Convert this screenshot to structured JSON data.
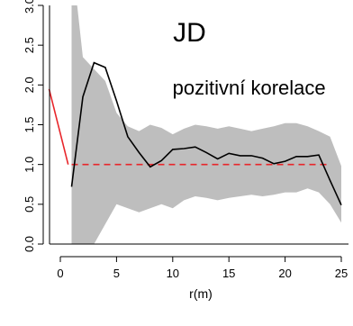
{
  "chart_data": {
    "type": "line",
    "title": "",
    "xlabel": "r(m)",
    "ylabel": "",
    "xlim": [
      -1,
      25
    ],
    "ylim": [
      0,
      3
    ],
    "x_ticks": [
      0,
      5,
      10,
      15,
      20,
      25
    ],
    "y_ticks": [
      0.0,
      0.5,
      1.0,
      1.5,
      2.0,
      2.5,
      3.0
    ],
    "x_tick_labels": [
      "0",
      "5",
      "10",
      "15",
      "20",
      "25"
    ],
    "y_tick_labels": [
      "0.0",
      "0.5",
      "1.0",
      "1.5",
      "2.0",
      "2.5",
      "3.0"
    ],
    "grid": false,
    "annotations": [
      {
        "text": "JD",
        "x": 11.5,
        "y": 2.55,
        "size": "large"
      },
      {
        "text": "pozitivní korelace",
        "x": 16.8,
        "y": 1.88,
        "size": "medium"
      }
    ],
    "colors": {
      "observed": "#000000",
      "envelope": "#bebebe",
      "expected": "#e8262b",
      "short_range": "#e8262b"
    },
    "series": [
      {
        "role": "observed",
        "style": "solid",
        "x": [
          1,
          2,
          3,
          4,
          5,
          6,
          7,
          8,
          9,
          10,
          11,
          12,
          13,
          14,
          15,
          16,
          17,
          18,
          19,
          20,
          21,
          22,
          23,
          24,
          25
        ],
        "y": [
          0.72,
          1.85,
          2.28,
          2.22,
          1.8,
          1.35,
          1.15,
          0.97,
          1.05,
          1.19,
          1.2,
          1.22,
          1.15,
          1.07,
          1.14,
          1.11,
          1.11,
          1.08,
          1.01,
          1.04,
          1.1,
          1.1,
          1.12,
          0.8,
          0.49
        ]
      },
      {
        "role": "expected",
        "style": "dashed",
        "x": [
          1,
          24
        ],
        "y": [
          1.0,
          1.0
        ]
      },
      {
        "role": "short_range",
        "style": "solid",
        "x": [
          -1,
          0.7
        ],
        "y": [
          1.95,
          1.0
        ]
      },
      {
        "role": "envelope",
        "style": "band",
        "x": [
          1,
          1.5,
          2,
          3,
          4,
          5,
          6,
          7,
          8,
          9,
          10,
          11,
          12,
          13,
          14,
          15,
          16,
          17,
          18,
          19,
          20,
          21,
          22,
          23,
          24,
          25
        ],
        "upper": [
          3.0,
          3.0,
          2.35,
          2.2,
          2.05,
          1.65,
          1.48,
          1.42,
          1.5,
          1.46,
          1.38,
          1.45,
          1.5,
          1.48,
          1.45,
          1.48,
          1.45,
          1.42,
          1.45,
          1.48,
          1.52,
          1.52,
          1.48,
          1.42,
          1.35,
          0.98
        ],
        "lower": [
          0.0,
          0.0,
          0.0,
          0.0,
          0.25,
          0.5,
          0.45,
          0.4,
          0.45,
          0.5,
          0.45,
          0.55,
          0.6,
          0.58,
          0.55,
          0.58,
          0.6,
          0.62,
          0.6,
          0.62,
          0.65,
          0.65,
          0.7,
          0.65,
          0.5,
          0.27
        ]
      }
    ]
  }
}
